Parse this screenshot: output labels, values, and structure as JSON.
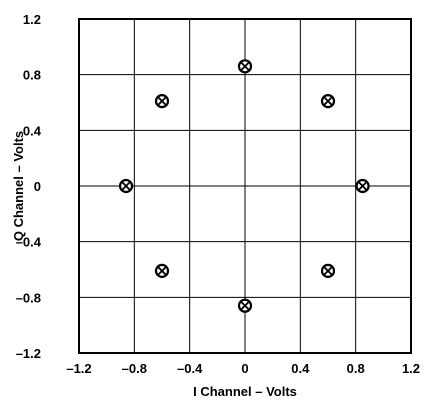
{
  "chart_data": {
    "type": "scatter",
    "title": "",
    "xlabel": "I Channel – Volts",
    "ylabel": "Q Channel – Volts",
    "xlim": [
      -1.2,
      1.2
    ],
    "ylim": [
      -1.2,
      1.2
    ],
    "x_ticks": [
      -1.2,
      -0.8,
      -0.4,
      0,
      0.4,
      0.8,
      1.2
    ],
    "y_ticks": [
      -1.2,
      -0.8,
      -0.4,
      0,
      0.4,
      0.8,
      1.2
    ],
    "x_tick_labels": [
      "–1.2",
      "–0.8",
      "–0.4",
      "0",
      "0.4",
      "0.8",
      "1.2"
    ],
    "y_tick_labels": [
      "–1.2",
      "–0.8",
      "–0.4",
      "0",
      "0.4",
      "0.8",
      "1.2"
    ],
    "grid": true,
    "marker": "circle-x",
    "points": [
      {
        "x": 0,
        "y": 0.86
      },
      {
        "x": 0.6,
        "y": 0.61
      },
      {
        "x": 0.85,
        "y": 0
      },
      {
        "x": 0.6,
        "y": -0.61
      },
      {
        "x": 0,
        "y": -0.86
      },
      {
        "x": -0.6,
        "y": -0.61
      },
      {
        "x": -0.86,
        "y": 0
      },
      {
        "x": -0.6,
        "y": 0.61
      }
    ]
  }
}
